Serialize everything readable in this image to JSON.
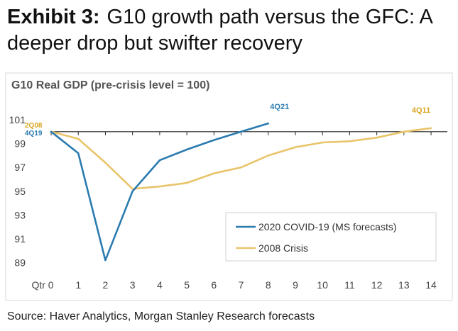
{
  "header": {
    "exhibit_label": "Exhibit 3:",
    "title": "G10 growth path versus the GFC: A deeper drop but swifter recovery"
  },
  "source": "Source: Haver Analytics, Morgan Stanley Research forecasts",
  "chart_data": {
    "type": "line",
    "title": "G10 Real GDP (pre-crisis level = 100)",
    "xlabel": "",
    "ylabel": "",
    "x_tick_labels": [
      "Qtr 0",
      "1",
      "2",
      "3",
      "4",
      "5",
      "6",
      "7",
      "8",
      "9",
      "10",
      "11",
      "12",
      "13",
      "14"
    ],
    "y_ticks": [
      89,
      91,
      93,
      95,
      97,
      99,
      101
    ],
    "ylim": [
      88.5,
      101.3
    ],
    "xlim": [
      0,
      14.6
    ],
    "grid": false,
    "legend_position": "lower-right",
    "series": [
      {
        "name": "2020 COVID-19 (MS forecasts)",
        "color": "#2b7bb0",
        "x": [
          0,
          1,
          2,
          3,
          4,
          5,
          6,
          7,
          8
        ],
        "y": [
          100.0,
          98.2,
          89.2,
          95.0,
          97.6,
          98.5,
          99.3,
          100.0,
          100.7
        ],
        "start_label": "4Q19",
        "end_label": "4Q21"
      },
      {
        "name": "2008 Crisis",
        "color": "#e9c46a",
        "label_color": "#d9a520",
        "x": [
          0,
          1,
          2,
          3,
          4,
          5,
          6,
          7,
          8,
          9,
          10,
          11,
          12,
          13,
          14
        ],
        "y": [
          100.0,
          99.4,
          97.4,
          95.2,
          95.4,
          95.7,
          96.5,
          97.0,
          98.0,
          98.7,
          99.1,
          99.2,
          99.5,
          100.0,
          100.3
        ],
        "start_label": "2Q08",
        "end_label": "4Q11"
      }
    ]
  }
}
